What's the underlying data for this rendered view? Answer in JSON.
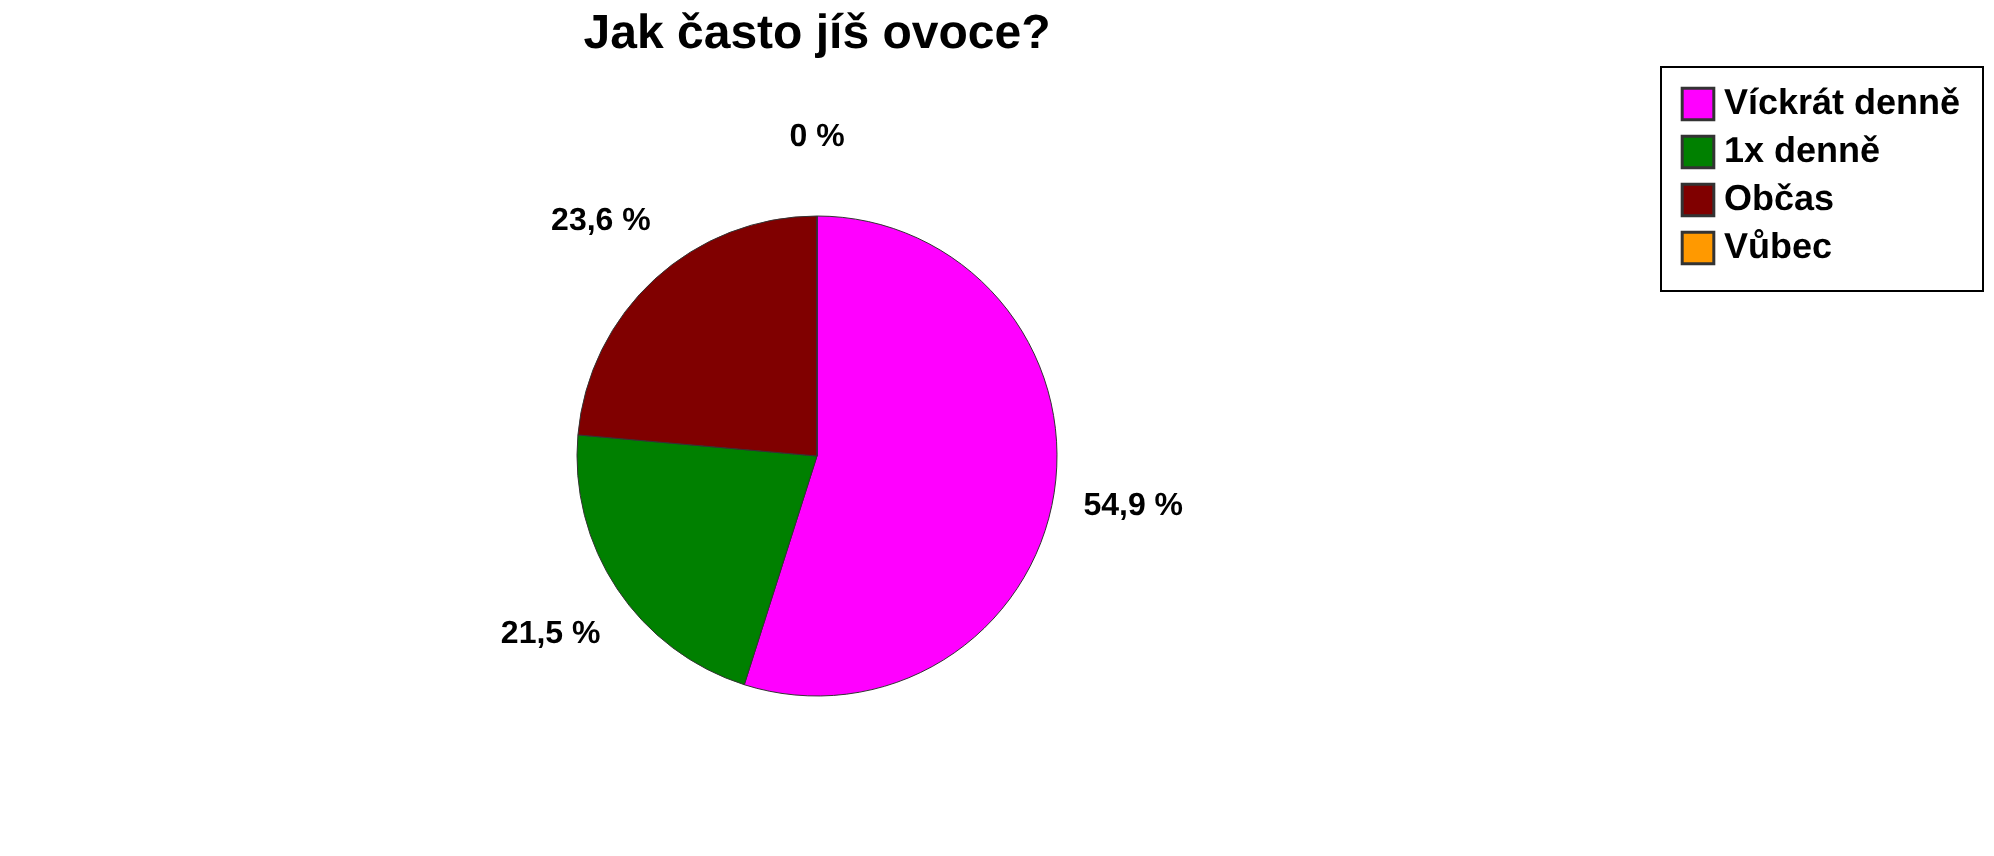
{
  "chart_data": {
    "type": "pie",
    "title": "Jak často jíš ovoce?",
    "categories": [
      "Víckrát denně",
      "1x denně",
      "Občas",
      "Vůbec"
    ],
    "values": [
      54.9,
      21.5,
      23.6,
      0
    ],
    "value_labels": [
      "54,9 %",
      "21,5 %",
      "23,6 %",
      "0 %"
    ],
    "colors": [
      "#ff00ff",
      "#008000",
      "#800000",
      "#ff9900"
    ],
    "legend": "right"
  }
}
